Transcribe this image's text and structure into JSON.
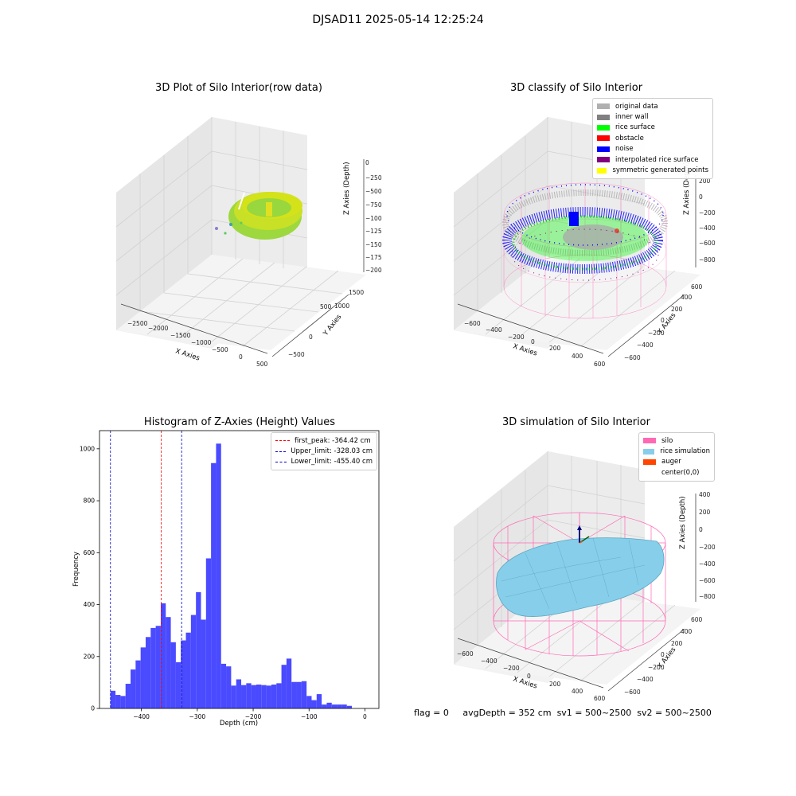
{
  "figure": {
    "title": "DJSAD11 2025-05-14 12:25:24"
  },
  "status": {
    "flag": "flag = 0",
    "avg": "avgDepth = 352 cm",
    "sv1": "sv1 = 500~2500",
    "sv2": "sv2 = 500~2500"
  },
  "chart_data": [
    {
      "type": "scatter3d",
      "title": "3D Plot of Silo Interior(row data)",
      "xlabel": "X Axies",
      "ylabel": "Y Axies",
      "zlabel": "Z Axies (Depth)",
      "x_ticks": [
        "−2500",
        "−2000",
        "−1500",
        "−1000",
        "−500",
        "0",
        "500"
      ],
      "y_ticks": [
        "−500",
        "0",
        "500",
        "1000",
        "1500"
      ],
      "z_ticks": [
        "0",
        "−250",
        "−500",
        "−750",
        "−1000",
        "−1250",
        "−1500",
        "−1750",
        "−2000"
      ],
      "colors": {
        "surface_a": "#c8e026",
        "surface_b": "#8fd44a",
        "accent": "#5ec962"
      },
      "grid": true
    },
    {
      "type": "scatter3d",
      "title": "3D classify of Silo Interior",
      "xlabel": "X Axies",
      "ylabel": "Y Axies",
      "zlabel": "Z Axies (Depth)",
      "x_ticks": [
        "−600",
        "−400",
        "−200",
        "0",
        "200",
        "400",
        "600"
      ],
      "y_ticks": [
        "−600",
        "−400",
        "−200",
        "0",
        "200",
        "400",
        "600"
      ],
      "z_ticks": [
        "200",
        "0",
        "−200",
        "−400",
        "−600",
        "−800"
      ],
      "legend_position": "top-right",
      "legend": [
        {
          "label": "original data",
          "color": "#b0b0b0"
        },
        {
          "label": "inner wall",
          "color": "#808080"
        },
        {
          "label": "rice surface",
          "color": "#00ff00"
        },
        {
          "label": "obstacle",
          "color": "#ff0000"
        },
        {
          "label": "noise",
          "color": "#0000ff"
        },
        {
          "label": "interpolated rice surface",
          "color": "#800080"
        },
        {
          "label": "symmetric generated points",
          "color": "#ffff00"
        }
      ],
      "grid": true
    },
    {
      "type": "bar",
      "title": "Histogram of Z-Axies (Height) Values",
      "xlabel": "Depth (cm)",
      "ylabel": "Frequency",
      "xlim": [
        -475,
        25
      ],
      "ylim": [
        0,
        1070
      ],
      "x_ticks": [
        -400,
        -300,
        -200,
        -100,
        0
      ],
      "y_ticks": [
        0,
        200,
        400,
        600,
        800,
        1000
      ],
      "bin_start": -455.4,
      "bin_width": 9.0,
      "values": [
        68,
        52,
        48,
        95,
        150,
        185,
        235,
        275,
        310,
        318,
        405,
        352,
        255,
        178,
        262,
        292,
        360,
        448,
        342,
        578,
        945,
        1020,
        172,
        162,
        88,
        112,
        90,
        97,
        90,
        92,
        90,
        88,
        92,
        97,
        168,
        192,
        102,
        102,
        105,
        48,
        32,
        55,
        15,
        22,
        15,
        15,
        15,
        10
      ],
      "bar_color": "#4a4aff",
      "lines": [
        {
          "label": "first_peak: -364.42 cm",
          "x": -364.42,
          "color": "#ff0000"
        },
        {
          "label": "Upper_limit: -328.03 cm",
          "x": -328.03,
          "color": "#0000cc"
        },
        {
          "label": "Lower_limit: -455.40 cm",
          "x": -455.4,
          "color": "#0000cc"
        }
      ],
      "legend_position": "top-right"
    },
    {
      "type": "surface3d",
      "title": "3D simulation of Silo Interior",
      "xlabel": "X Axies",
      "ylabel": "Y Axies",
      "zlabel": "Z Axies (Depth)",
      "x_ticks": [
        "−600",
        "−400",
        "−200",
        "0",
        "200",
        "400",
        "600"
      ],
      "y_ticks": [
        "−600",
        "−400",
        "−200",
        "0",
        "200",
        "400",
        "600"
      ],
      "z_ticks": [
        "400",
        "200",
        "0",
        "−200",
        "−400",
        "−600",
        "−800"
      ],
      "legend_position": "top-right",
      "legend": [
        {
          "label": "silo",
          "color": "#ff69b4"
        },
        {
          "label": "rice simulation",
          "color": "#87ceeb"
        },
        {
          "label": "auger",
          "color": "#ff4500"
        },
        {
          "label": "center(0,0)",
          "color": "#ffffff"
        }
      ],
      "grid": true
    }
  ]
}
